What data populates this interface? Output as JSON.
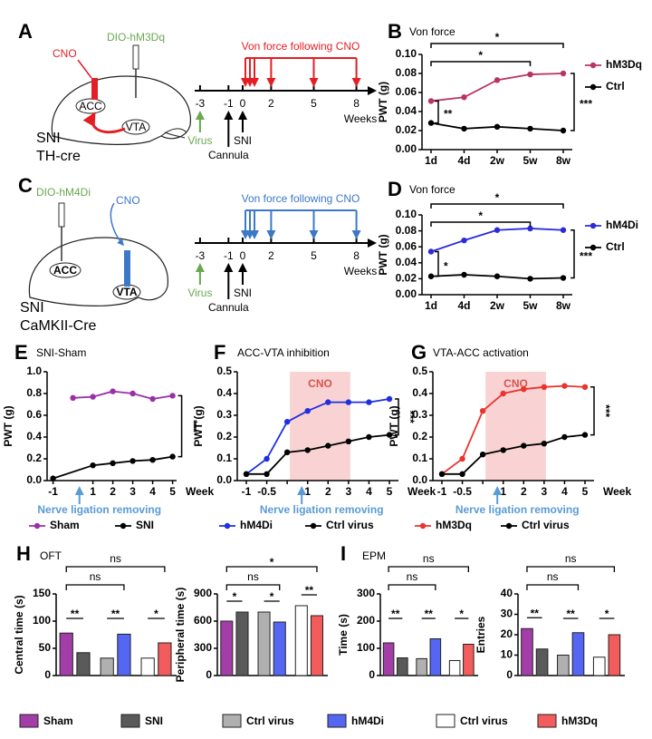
{
  "schematics": [
    {
      "label": "A",
      "cno": "CNO",
      "construct": "DIO-hM3Dq",
      "acc": "ACC",
      "vta": "VTA",
      "model": "SNI",
      "strain": "TH-cre"
    },
    {
      "label": "C",
      "cno": "CNO",
      "construct": "DIO-hM4Di",
      "acc": "ACC",
      "vta": "VTA",
      "model": "SNI",
      "strain": "CaMKII-Cre"
    }
  ],
  "timelines": [
    {
      "caption": "Von force following CNO",
      "ticks": [
        "-3",
        "-1",
        "0",
        "2",
        "5",
        "8"
      ],
      "unit": "Weeks",
      "virus": "Virus",
      "sni": "SNI",
      "cannula": "Cannula"
    },
    {
      "caption": "Von force following CNO",
      "ticks": [
        "-3",
        "-1",
        "0",
        "2",
        "5",
        "8"
      ],
      "unit": "Weeks",
      "virus": "Virus",
      "sni": "SNI",
      "cannula": "Cannula"
    }
  ],
  "groups": [
    {
      "label": "H",
      "title": "OFT"
    },
    {
      "label": "I",
      "title": "EPM"
    }
  ],
  "bar_groups": [
    {
      "name": "Sham",
      "color": "#a33ea8"
    },
    {
      "name": "SNI",
      "color": "#5a5a5a"
    },
    {
      "name": "Ctrl virus",
      "color": "#b0b0b0"
    },
    {
      "name": "hM4Di",
      "color": "#5566f2"
    },
    {
      "name": "Ctrl virus",
      "color": "#ffffff"
    },
    {
      "name": "hM3Dq",
      "color": "#f25c5c"
    }
  ],
  "chart_data": [
    {
      "type": "line",
      "panel": "B",
      "title": "Von force",
      "ylabel": "PWT (g)",
      "categories": [
        "1d",
        "4d",
        "2w",
        "5w",
        "8w"
      ],
      "series": [
        {
          "name": "hM3Dq",
          "color": "#b83561",
          "values": [
            0.051,
            0.055,
            0.073,
            0.079,
            0.08
          ]
        },
        {
          "name": "Ctrl",
          "color": "#000000",
          "values": [
            0.028,
            0.022,
            0.024,
            0.022,
            0.02
          ]
        }
      ],
      "ylim": [
        0,
        0.1
      ],
      "yticks": [
        {
          "value": 0,
          "label": "0.00"
        },
        {
          "value": 0.02,
          "label": "0.02"
        },
        {
          "value": 0.04,
          "label": "0.04"
        },
        {
          "value": 0.06,
          "label": "0.06"
        },
        {
          "value": 0.08,
          "label": "0.08"
        },
        {
          "value": 0.1,
          "label": "0.10"
        }
      ],
      "legend": "right",
      "annotations": [
        "*",
        "*",
        "**",
        "***"
      ]
    },
    {
      "type": "line",
      "panel": "D",
      "title": "Von force",
      "ylabel": "PWT (g)",
      "categories": [
        "1d",
        "4d",
        "2w",
        "5w",
        "8w"
      ],
      "series": [
        {
          "name": "hM4Di",
          "color": "#2b2bdc",
          "values": [
            0.054,
            0.068,
            0.081,
            0.083,
            0.081
          ]
        },
        {
          "name": "Ctrl",
          "color": "#000000",
          "values": [
            0.023,
            0.025,
            0.023,
            0.02,
            0.021
          ]
        }
      ],
      "ylim": [
        0,
        0.1
      ],
      "yticks": [
        {
          "value": 0,
          "label": "0.00"
        },
        {
          "value": 0.02,
          "label": "0.02"
        },
        {
          "value": 0.04,
          "label": "0.04"
        },
        {
          "value": 0.06,
          "label": "0.06"
        },
        {
          "value": 0.08,
          "label": "0.08"
        },
        {
          "value": 0.1,
          "label": "0.10"
        }
      ],
      "legend": "right",
      "annotations": [
        "*",
        "*",
        "*",
        "***"
      ]
    },
    {
      "type": "line",
      "panel": "E",
      "title": "SNI-Sham",
      "ylabel": "PWT (g)",
      "xlabel": "Week",
      "note": "Nerve ligation removing",
      "xlim": [
        -1.3,
        5.2
      ],
      "xticks": [
        -1,
        1,
        2,
        3,
        4,
        5
      ],
      "series": [
        {
          "name": "Sham",
          "color": "#9a2fa8",
          "x": [
            0,
            1,
            2,
            3,
            4,
            5
          ],
          "values": [
            0.76,
            0.77,
            0.82,
            0.8,
            0.75,
            0.78
          ]
        },
        {
          "name": "SNI",
          "color": "#000000",
          "x": [
            -1,
            1,
            2,
            3,
            4,
            5
          ],
          "values": [
            0.02,
            0.14,
            0.16,
            0.18,
            0.19,
            0.22
          ]
        }
      ],
      "ylim": [
        0,
        1
      ],
      "yticks": [
        {
          "value": 0,
          "label": "0.0"
        },
        {
          "value": 0.2,
          "label": "0.2"
        },
        {
          "value": 0.4,
          "label": "0.4"
        },
        {
          "value": 0.6,
          "label": "0.6"
        },
        {
          "value": 0.8,
          "label": "0.8"
        },
        {
          "value": 1,
          "label": "1.0"
        }
      ],
      "legend": "bottom",
      "annotations": [
        "***"
      ]
    },
    {
      "type": "line",
      "panel": "F",
      "title": "ACC-VTA inhibition",
      "ylabel": "PWT (g)",
      "xlabel": "Week",
      "note": "Nerve ligation removing",
      "shade_label": "CNO",
      "categories": [
        "-1",
        "-0.5",
        null,
        "1",
        "2",
        "3",
        "4",
        "5"
      ],
      "series": [
        {
          "name": "hM4Di",
          "color": "#1f2fe0",
          "values": [
            0.03,
            0.1,
            0.27,
            0.32,
            0.36,
            0.36,
            0.36,
            0.375
          ]
        },
        {
          "name": "Ctrl virus",
          "color": "#000000",
          "values": [
            0.03,
            0.03,
            0.13,
            0.14,
            0.16,
            0.18,
            0.2,
            0.21
          ]
        }
      ],
      "ylim": [
        0,
        0.5
      ],
      "yticks": [
        {
          "value": 0,
          "label": "0.0"
        },
        0.1,
        0.2,
        0.3,
        0.4,
        0.5
      ],
      "legend": "bottom",
      "annotations": [
        "***"
      ]
    },
    {
      "type": "line",
      "panel": "G",
      "title": "VTA-ACC activation",
      "ylabel": "PWT (g)",
      "xlabel": "Week",
      "note": "Nerve ligation removing",
      "shade_label": "CNO",
      "categories": [
        "-1",
        "-0.5",
        null,
        "1",
        "2",
        "3",
        "4",
        "5"
      ],
      "series": [
        {
          "name": "hM3Dq",
          "color": "#e8352e",
          "values": [
            0.03,
            0.1,
            0.32,
            0.4,
            0.42,
            0.43,
            0.435,
            0.43
          ]
        },
        {
          "name": "Ctrl virus",
          "color": "#000000",
          "values": [
            0.03,
            0.03,
            0.12,
            0.14,
            0.16,
            0.17,
            0.2,
            0.21
          ]
        }
      ],
      "ylim": [
        0,
        0.5
      ],
      "yticks": [
        {
          "value": 0,
          "label": "0.0"
        },
        0.1,
        0.2,
        0.3,
        0.4,
        0.5
      ],
      "legend": "bottom",
      "annotations": [
        "***"
      ]
    },
    {
      "type": "bar",
      "ylabel": "Central time (s)",
      "values": [
        78,
        42,
        32,
        76,
        32,
        60
      ],
      "ylim": [
        0,
        150
      ],
      "yticks": [
        0,
        50,
        100,
        150
      ],
      "annotations": [
        "**",
        "**",
        "*",
        "ns",
        "ns"
      ]
    },
    {
      "type": "bar",
      "ylabel": "Peripheral time (s)",
      "values": [
        600,
        700,
        700,
        590,
        770,
        660
      ],
      "ylim": [
        0,
        900
      ],
      "yticks": [
        0,
        300,
        600,
        900
      ],
      "annotations": [
        "*",
        "*",
        "**",
        "ns",
        "*"
      ]
    },
    {
      "type": "bar",
      "ylabel": "Time (s)",
      "values": [
        120,
        65,
        62,
        135,
        55,
        115
      ],
      "ylim": [
        0,
        300
      ],
      "yticks": [
        0,
        100,
        200,
        300
      ],
      "annotations": [
        "**",
        "**",
        "*",
        "ns",
        "ns"
      ]
    },
    {
      "type": "bar",
      "ylabel": "Entries",
      "values": [
        23,
        13,
        10,
        21,
        9,
        20
      ],
      "ylim": [
        0,
        40
      ],
      "yticks": [
        0,
        10,
        20,
        30,
        40
      ],
      "annotations": [
        "**",
        "**",
        "*",
        "ns",
        "ns"
      ]
    }
  ]
}
